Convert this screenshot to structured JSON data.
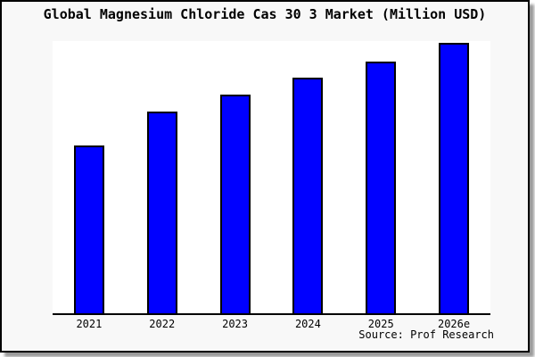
{
  "card": {
    "background": "#f8f8f8",
    "border_color": "#000000",
    "shadow_color": "#9a9a9a"
  },
  "chart": {
    "title": "Global Magnesium Chloride Cas 30 3 Market (Million USD)",
    "source": "Source: Prof Research"
  },
  "chart_data": {
    "type": "bar",
    "title": "Global Magnesium Chloride Cas 30 3 Market (Million USD)",
    "unit": "Million USD",
    "categories": [
      "2021",
      "2022",
      "2023",
      "2024",
      "2025",
      "2026e"
    ],
    "values_pct_of_max": [
      62,
      74.6,
      80.9,
      87.1,
      93.1,
      100
    ],
    "series_note": "No numeric y-axis ticks, gridlines or data labels are shown; values are relative bar heights as percent of the tallest (2026e) bar.",
    "xlabel": "",
    "ylabel": "",
    "legend": "none",
    "grid": false,
    "bar_color": "#0000ff",
    "bar_border_color": "#000000",
    "plot_background": "#ffffff",
    "axis_color": "#000000",
    "source": "Source: Prof Research"
  }
}
